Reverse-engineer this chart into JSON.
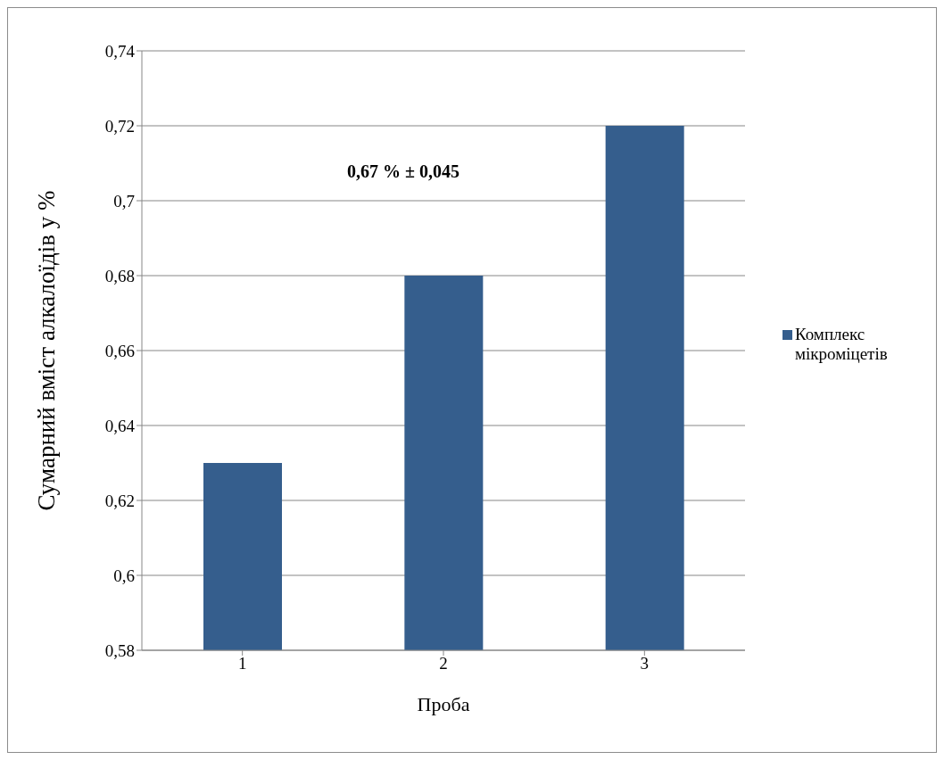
{
  "chart_data": {
    "type": "bar",
    "xlabel": "Проба",
    "ylabel": "Сумарний вміст алкалоїдів у %",
    "categories": [
      "1",
      "2",
      "3"
    ],
    "series": [
      {
        "name": "Комплекс мікроміцетів",
        "color": "#355e8d",
        "values": [
          0.63,
          0.68,
          0.72
        ]
      }
    ],
    "ylim": [
      0.58,
      0.74
    ],
    "yticks": [
      {
        "value": 0.58,
        "label": "0,58"
      },
      {
        "value": 0.6,
        "label": "0,6"
      },
      {
        "value": 0.62,
        "label": "0,62"
      },
      {
        "value": 0.64,
        "label": "0,64"
      },
      {
        "value": 0.66,
        "label": "0,66"
      },
      {
        "value": 0.68,
        "label": "0,68"
      },
      {
        "value": 0.7,
        "label": "0,7"
      },
      {
        "value": 0.72,
        "label": "0,72"
      },
      {
        "value": 0.74,
        "label": "0,74"
      }
    ],
    "grid": "y",
    "legend": "right",
    "annotations": [
      "0,67 % ± 0,045"
    ]
  }
}
